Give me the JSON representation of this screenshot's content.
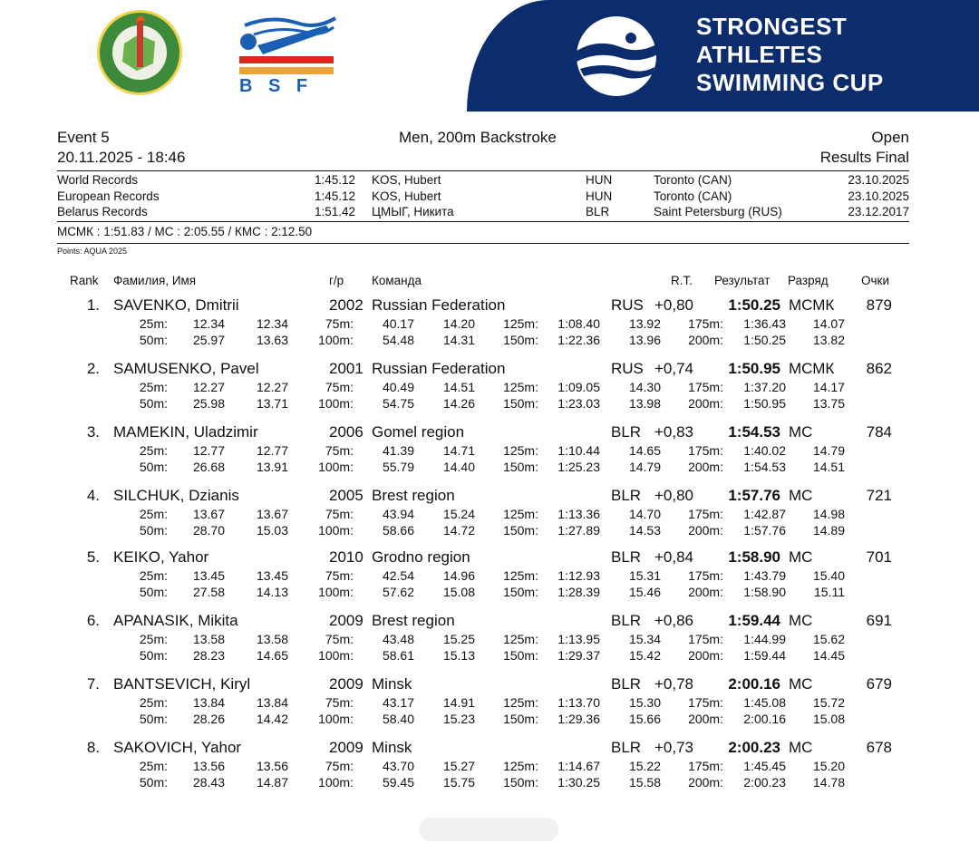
{
  "logos": {
    "left_seal": "federation-seal",
    "bsf_text": "B S F",
    "banner_title": [
      "STRONGEST",
      "ATHLETES",
      "SWIMMING CUP"
    ]
  },
  "colors": {
    "banner": "#0b2d6e",
    "seal_green": "#3c8a3a",
    "bsf_red": "#d72a20",
    "bsf_blue": "#1a5fb4",
    "bsf_orange": "#e8a53c"
  },
  "event": {
    "number": "Event 5",
    "title": "Men, 200m Backstroke",
    "category": "Open",
    "datetime": "20.11.2025 - 18:46",
    "phase": "Results Final"
  },
  "records": [
    {
      "label": "World Records",
      "time": "1:45.12",
      "holder": "KOS, Hubert",
      "nat": "HUN",
      "place": "Toronto (CAN)",
      "date": "23.10.2025"
    },
    {
      "label": "European Records",
      "time": "1:45.12",
      "holder": "KOS, Hubert",
      "nat": "HUN",
      "place": "Toronto (CAN)",
      "date": "23.10.2025"
    },
    {
      "label": "Belarus Records",
      "time": "1:51.42",
      "holder": "ЦМЫГ, Никита",
      "nat": "BLR",
      "place": "Saint Petersburg (RUS)",
      "date": "23.12.2017"
    }
  ],
  "standards": "МСМК : 1:51.83  /  МС : 2:05.55  /  КМС : 2:12.50",
  "points_note": "Points: AQUA 2025",
  "columns": {
    "rank": "Rank",
    "name": "Фамилия, Имя",
    "year": "г/р",
    "team": "Команда",
    "rt": "R.T.",
    "result": "Результат",
    "grade": "Разряд",
    "points": "Очки"
  },
  "results": [
    {
      "rank": "1.",
      "name": "SAVENKO, Dmitrii",
      "year": "2002",
      "team": "Russian Federation",
      "nat": "RUS",
      "rt": "+0,80",
      "result": "1:50.25",
      "grade": "МСМК",
      "points": "879",
      "splits": [
        [
          "25m:",
          "12.34",
          "12.34"
        ],
        [
          "75m:",
          "40.17",
          "14.20"
        ],
        [
          "125m:",
          "1:08.40",
          "13.92"
        ],
        [
          "175m:",
          "1:36.43",
          "14.07"
        ],
        [
          "50m:",
          "25.97",
          "13.63"
        ],
        [
          "100m:",
          "54.48",
          "14.31"
        ],
        [
          "150m:",
          "1:22.36",
          "13.96"
        ],
        [
          "200m:",
          "1:50.25",
          "13.82"
        ]
      ]
    },
    {
      "rank": "2.",
      "name": "SAMUSENKO, Pavel",
      "year": "2001",
      "team": "Russian Federation",
      "nat": "RUS",
      "rt": "+0,74",
      "result": "1:50.95",
      "grade": "МСМК",
      "points": "862",
      "splits": [
        [
          "25m:",
          "12.27",
          "12.27"
        ],
        [
          "75m:",
          "40.49",
          "14.51"
        ],
        [
          "125m:",
          "1:09.05",
          "14.30"
        ],
        [
          "175m:",
          "1:37.20",
          "14.17"
        ],
        [
          "50m:",
          "25.98",
          "13.71"
        ],
        [
          "100m:",
          "54.75",
          "14.26"
        ],
        [
          "150m:",
          "1:23.03",
          "13.98"
        ],
        [
          "200m:",
          "1:50.95",
          "13.75"
        ]
      ]
    },
    {
      "rank": "3.",
      "name": "MAMEKIN, Uladzimir",
      "year": "2006",
      "team": "Gomel region",
      "nat": "BLR",
      "rt": "+0,83",
      "result": "1:54.53",
      "grade": "МС",
      "points": "784",
      "splits": [
        [
          "25m:",
          "12.77",
          "12.77"
        ],
        [
          "75m:",
          "41.39",
          "14.71"
        ],
        [
          "125m:",
          "1:10.44",
          "14.65"
        ],
        [
          "175m:",
          "1:40.02",
          "14.79"
        ],
        [
          "50m:",
          "26.68",
          "13.91"
        ],
        [
          "100m:",
          "55.79",
          "14.40"
        ],
        [
          "150m:",
          "1:25.23",
          "14.79"
        ],
        [
          "200m:",
          "1:54.53",
          "14.51"
        ]
      ]
    },
    {
      "rank": "4.",
      "name": "SILCHUK, Dzianis",
      "year": "2005",
      "team": "Brest region",
      "nat": "BLR",
      "rt": "+0,80",
      "result": "1:57.76",
      "grade": "МС",
      "points": "721",
      "splits": [
        [
          "25m:",
          "13.67",
          "13.67"
        ],
        [
          "75m:",
          "43.94",
          "15.24"
        ],
        [
          "125m:",
          "1:13.36",
          "14.70"
        ],
        [
          "175m:",
          "1:42.87",
          "14.98"
        ],
        [
          "50m:",
          "28.70",
          "15.03"
        ],
        [
          "100m:",
          "58.66",
          "14.72"
        ],
        [
          "150m:",
          "1:27.89",
          "14.53"
        ],
        [
          "200m:",
          "1:57.76",
          "14.89"
        ]
      ]
    },
    {
      "rank": "5.",
      "name": "KEIKO, Yahor",
      "year": "2010",
      "team": "Grodno region",
      "nat": "BLR",
      "rt": "+0,84",
      "result": "1:58.90",
      "grade": "МС",
      "points": "701",
      "splits": [
        [
          "25m:",
          "13.45",
          "13.45"
        ],
        [
          "75m:",
          "42.54",
          "14.96"
        ],
        [
          "125m:",
          "1:12.93",
          "15.31"
        ],
        [
          "175m:",
          "1:43.79",
          "15.40"
        ],
        [
          "50m:",
          "27.58",
          "14.13"
        ],
        [
          "100m:",
          "57.62",
          "15.08"
        ],
        [
          "150m:",
          "1:28.39",
          "15.46"
        ],
        [
          "200m:",
          "1:58.90",
          "15.11"
        ]
      ]
    },
    {
      "rank": "6.",
      "name": "APANASIK, Mikita",
      "year": "2009",
      "team": "Brest region",
      "nat": "BLR",
      "rt": "+0,86",
      "result": "1:59.44",
      "grade": "МС",
      "points": "691",
      "splits": [
        [
          "25m:",
          "13.58",
          "13.58"
        ],
        [
          "75m:",
          "43.48",
          "15.25"
        ],
        [
          "125m:",
          "1:13.95",
          "15.34"
        ],
        [
          "175m:",
          "1:44.99",
          "15.62"
        ],
        [
          "50m:",
          "28.23",
          "14.65"
        ],
        [
          "100m:",
          "58.61",
          "15.13"
        ],
        [
          "150m:",
          "1:29.37",
          "15.42"
        ],
        [
          "200m:",
          "1:59.44",
          "14.45"
        ]
      ]
    },
    {
      "rank": "7.",
      "name": "BANTSEVICH, Kiryl",
      "year": "2009",
      "team": "Minsk",
      "nat": "BLR",
      "rt": "+0,78",
      "result": "2:00.16",
      "grade": "МС",
      "points": "679",
      "splits": [
        [
          "25m:",
          "13.84",
          "13.84"
        ],
        [
          "75m:",
          "43.17",
          "14.91"
        ],
        [
          "125m:",
          "1:13.70",
          "15.30"
        ],
        [
          "175m:",
          "1:45.08",
          "15.72"
        ],
        [
          "50m:",
          "28.26",
          "14.42"
        ],
        [
          "100m:",
          "58.40",
          "15.23"
        ],
        [
          "150m:",
          "1:29.36",
          "15.66"
        ],
        [
          "200m:",
          "2:00.16",
          "15.08"
        ]
      ]
    },
    {
      "rank": "8.",
      "name": "SAKOVICH, Yahor",
      "year": "2009",
      "team": "Minsk",
      "nat": "BLR",
      "rt": "+0,73",
      "result": "2:00.23",
      "grade": "МС",
      "points": "678",
      "splits": [
        [
          "25m:",
          "13.56",
          "13.56"
        ],
        [
          "75m:",
          "43.70",
          "15.27"
        ],
        [
          "125m:",
          "1:14.67",
          "15.22"
        ],
        [
          "175m:",
          "1:45.45",
          "15.20"
        ],
        [
          "50m:",
          "28.43",
          "14.87"
        ],
        [
          "100m:",
          "59.45",
          "15.75"
        ],
        [
          "150m:",
          "1:30.25",
          "15.58"
        ],
        [
          "200m:",
          "2:00.23",
          "14.78"
        ]
      ]
    }
  ]
}
